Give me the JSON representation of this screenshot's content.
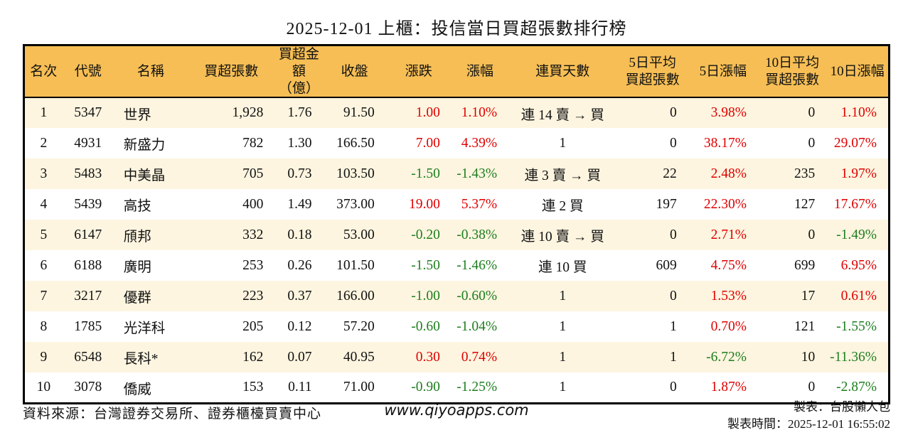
{
  "title": "2025-12-01 上櫃：投信當日買超張數排行榜",
  "colors": {
    "header_bg": "#f6be55",
    "row_alt": "#fdf5e0",
    "up": "#e00000",
    "down": "#1e7e1e",
    "border": "#000000"
  },
  "chart_data": {
    "type": "table",
    "title": "2025-12-01 上櫃：投信當日買超張數排行榜",
    "columns": [
      {
        "key": "rank",
        "label": "名次"
      },
      {
        "key": "code",
        "label": "代號"
      },
      {
        "key": "name",
        "label": "名稱"
      },
      {
        "key": "net_buy_shares",
        "label": "買超張數"
      },
      {
        "key": "net_buy_amount",
        "label": "買超金額\n（億）"
      },
      {
        "key": "close",
        "label": "收盤"
      },
      {
        "key": "change",
        "label": "漲跌"
      },
      {
        "key": "change_pct",
        "label": "漲幅"
      },
      {
        "key": "buy_streak",
        "label": "連買天數"
      },
      {
        "key": "avg5_shares",
        "label": "5日平均\n買超張數"
      },
      {
        "key": "pct5",
        "label": "5日漲幅"
      },
      {
        "key": "avg10_shares",
        "label": "10日平均\n買超張數"
      },
      {
        "key": "pct10",
        "label": "10日漲幅"
      }
    ],
    "rows": [
      [
        {
          "v": "1"
        },
        {
          "v": "5347"
        },
        {
          "v": "世界"
        },
        {
          "v": "1,928"
        },
        {
          "v": "1.76"
        },
        {
          "v": "91.50"
        },
        {
          "v": "1.00",
          "c": "up"
        },
        {
          "v": "1.10%",
          "c": "up"
        },
        {
          "v": "連 14 賣 → 買"
        },
        {
          "v": "0"
        },
        {
          "v": "3.98%",
          "c": "up"
        },
        {
          "v": "0"
        },
        {
          "v": "1.10%",
          "c": "up"
        }
      ],
      [
        {
          "v": "2"
        },
        {
          "v": "4931"
        },
        {
          "v": "新盛力"
        },
        {
          "v": "782"
        },
        {
          "v": "1.30"
        },
        {
          "v": "166.50"
        },
        {
          "v": "7.00",
          "c": "up"
        },
        {
          "v": "4.39%",
          "c": "up"
        },
        {
          "v": "1"
        },
        {
          "v": "0"
        },
        {
          "v": "38.17%",
          "c": "up"
        },
        {
          "v": "0"
        },
        {
          "v": "29.07%",
          "c": "up"
        }
      ],
      [
        {
          "v": "3"
        },
        {
          "v": "5483"
        },
        {
          "v": "中美晶"
        },
        {
          "v": "705"
        },
        {
          "v": "0.73"
        },
        {
          "v": "103.50"
        },
        {
          "v": "-1.50",
          "c": "down"
        },
        {
          "v": "-1.43%",
          "c": "down"
        },
        {
          "v": "連 3 賣 → 買"
        },
        {
          "v": "22"
        },
        {
          "v": "2.48%",
          "c": "up"
        },
        {
          "v": "235"
        },
        {
          "v": "1.97%",
          "c": "up"
        }
      ],
      [
        {
          "v": "4"
        },
        {
          "v": "5439"
        },
        {
          "v": "高技"
        },
        {
          "v": "400"
        },
        {
          "v": "1.49"
        },
        {
          "v": "373.00"
        },
        {
          "v": "19.00",
          "c": "up"
        },
        {
          "v": "5.37%",
          "c": "up"
        },
        {
          "v": "連 2 買"
        },
        {
          "v": "197"
        },
        {
          "v": "22.30%",
          "c": "up"
        },
        {
          "v": "127"
        },
        {
          "v": "17.67%",
          "c": "up"
        }
      ],
      [
        {
          "v": "5"
        },
        {
          "v": "6147"
        },
        {
          "v": "頎邦"
        },
        {
          "v": "332"
        },
        {
          "v": "0.18"
        },
        {
          "v": "53.00"
        },
        {
          "v": "-0.20",
          "c": "down"
        },
        {
          "v": "-0.38%",
          "c": "down"
        },
        {
          "v": "連 10 賣 → 買"
        },
        {
          "v": "0"
        },
        {
          "v": "2.71%",
          "c": "up"
        },
        {
          "v": "0"
        },
        {
          "v": "-1.49%",
          "c": "down"
        }
      ],
      [
        {
          "v": "6"
        },
        {
          "v": "6188"
        },
        {
          "v": "廣明"
        },
        {
          "v": "253"
        },
        {
          "v": "0.26"
        },
        {
          "v": "101.50"
        },
        {
          "v": "-1.50",
          "c": "down"
        },
        {
          "v": "-1.46%",
          "c": "down"
        },
        {
          "v": "連 10 買"
        },
        {
          "v": "609"
        },
        {
          "v": "4.75%",
          "c": "up"
        },
        {
          "v": "699"
        },
        {
          "v": "6.95%",
          "c": "up"
        }
      ],
      [
        {
          "v": "7"
        },
        {
          "v": "3217"
        },
        {
          "v": "優群"
        },
        {
          "v": "223"
        },
        {
          "v": "0.37"
        },
        {
          "v": "166.00"
        },
        {
          "v": "-1.00",
          "c": "down"
        },
        {
          "v": "-0.60%",
          "c": "down"
        },
        {
          "v": "1"
        },
        {
          "v": "0"
        },
        {
          "v": "1.53%",
          "c": "up"
        },
        {
          "v": "17"
        },
        {
          "v": "0.61%",
          "c": "up"
        }
      ],
      [
        {
          "v": "8"
        },
        {
          "v": "1785"
        },
        {
          "v": "光洋科"
        },
        {
          "v": "205"
        },
        {
          "v": "0.12"
        },
        {
          "v": "57.20"
        },
        {
          "v": "-0.60",
          "c": "down"
        },
        {
          "v": "-1.04%",
          "c": "down"
        },
        {
          "v": "1"
        },
        {
          "v": "1"
        },
        {
          "v": "0.70%",
          "c": "up"
        },
        {
          "v": "121"
        },
        {
          "v": "-1.55%",
          "c": "down"
        }
      ],
      [
        {
          "v": "9"
        },
        {
          "v": "6548"
        },
        {
          "v": "長科*"
        },
        {
          "v": "162"
        },
        {
          "v": "0.07"
        },
        {
          "v": "40.95"
        },
        {
          "v": "0.30",
          "c": "up"
        },
        {
          "v": "0.74%",
          "c": "up"
        },
        {
          "v": "1"
        },
        {
          "v": "1"
        },
        {
          "v": "-6.72%",
          "c": "down"
        },
        {
          "v": "10"
        },
        {
          "v": "-11.36%",
          "c": "down"
        }
      ],
      [
        {
          "v": "10"
        },
        {
          "v": "3078"
        },
        {
          "v": "僑威"
        },
        {
          "v": "153"
        },
        {
          "v": "0.11"
        },
        {
          "v": "71.00"
        },
        {
          "v": "-0.90",
          "c": "down"
        },
        {
          "v": "-1.25%",
          "c": "down"
        },
        {
          "v": "1"
        },
        {
          "v": "0"
        },
        {
          "v": "1.87%",
          "c": "up"
        },
        {
          "v": "0"
        },
        {
          "v": "-2.87%",
          "c": "down"
        }
      ]
    ]
  },
  "footer": {
    "source": "資料來源：台灣證券交易所、證券櫃檯買賣中心",
    "site": "www.qiyoapps.com",
    "author": "製表：台股懶人包",
    "time": "製表時間：2025-12-01 16:55:02"
  }
}
